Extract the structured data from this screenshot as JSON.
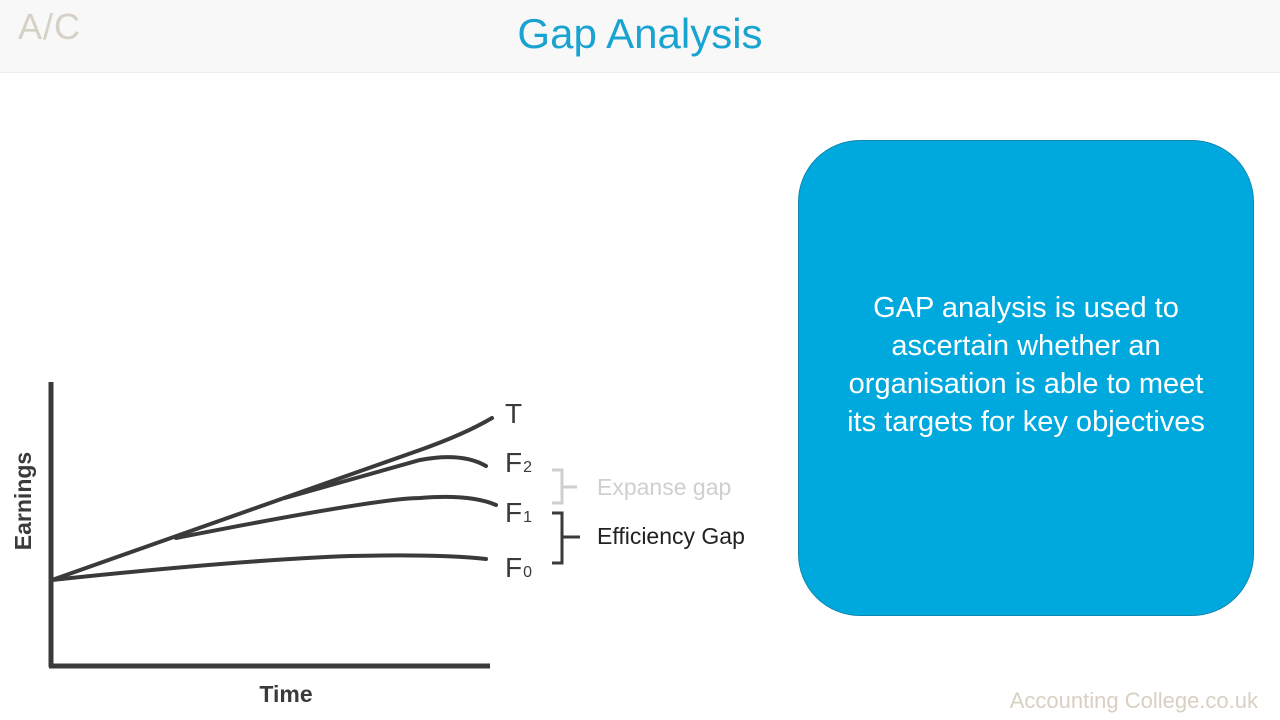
{
  "header": {
    "logo_text": "A/C",
    "title": "Gap Analysis"
  },
  "diagram": {
    "y_axis_label": "Earnings",
    "x_axis_label": "Time",
    "lines": [
      {
        "letter": "T",
        "subscript": ""
      },
      {
        "letter": "F",
        "subscript": "2"
      },
      {
        "letter": "F",
        "subscript": "1"
      },
      {
        "letter": "F",
        "subscript": "0"
      }
    ],
    "expansion_gap_label": "Expanse gap",
    "efficiency_gap_label": "Efficiency Gap",
    "colors": {
      "line": "#3a3a3a",
      "expansion_gap": "#cfcfcf"
    }
  },
  "info_box": {
    "text": "GAP analysis is used to ascertain whether an organisation is able to meet its targets for key objectives",
    "color": "#00a9dd"
  },
  "footer": {
    "website": "Accounting College.co.uk"
  }
}
